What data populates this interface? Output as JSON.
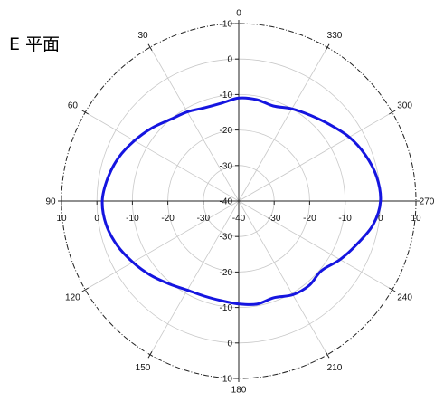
{
  "chart_data": {
    "type": "line",
    "subtype": "polar",
    "title": "E 平面",
    "angle_labels": [
      "0",
      "30",
      "60",
      "90",
      "120",
      "150",
      "180",
      "210",
      "240",
      "270",
      "300",
      "330"
    ],
    "radial_range": [
      -40,
      10
    ],
    "radial_ticks": [
      10,
      0,
      -10,
      -20,
      -30,
      -40
    ],
    "horizontal_axis_ticks": [
      "10",
      "0",
      "-10",
      "-20",
      "-30",
      "-40",
      "-30",
      "-20",
      "-10",
      "0",
      "10"
    ],
    "vertical_axis_ticks": [
      "10",
      "0",
      "-10",
      "-20",
      "-30",
      "-40",
      "-30",
      "-20",
      "-10",
      "0",
      "10"
    ],
    "grid": true,
    "line_color": "#1515e0",
    "series": [
      {
        "angles_deg": [
          0,
          10,
          20,
          30,
          40,
          50,
          60,
          70,
          80,
          90,
          100,
          110,
          120,
          130,
          140,
          150,
          160,
          170,
          180,
          190,
          200,
          210,
          220,
          230,
          240,
          250,
          260,
          270,
          280,
          290,
          300,
          310,
          320,
          330,
          340,
          350,
          360
        ],
        "values": [
          -11,
          -12,
          -12,
          -11,
          -10,
          -8,
          -6,
          -4,
          -2.5,
          -1.5,
          -2,
          -3.5,
          -5.5,
          -7.5,
          -9.5,
          -11,
          -11.5,
          -11.5,
          -11,
          -10.5,
          -11,
          -9.5,
          -9,
          -9.5,
          -7,
          -4.5,
          -1.5,
          0,
          -0.5,
          -2,
          -4,
          -6.5,
          -8.5,
          -10,
          -11.5,
          -11,
          -11
        ]
      }
    ]
  }
}
